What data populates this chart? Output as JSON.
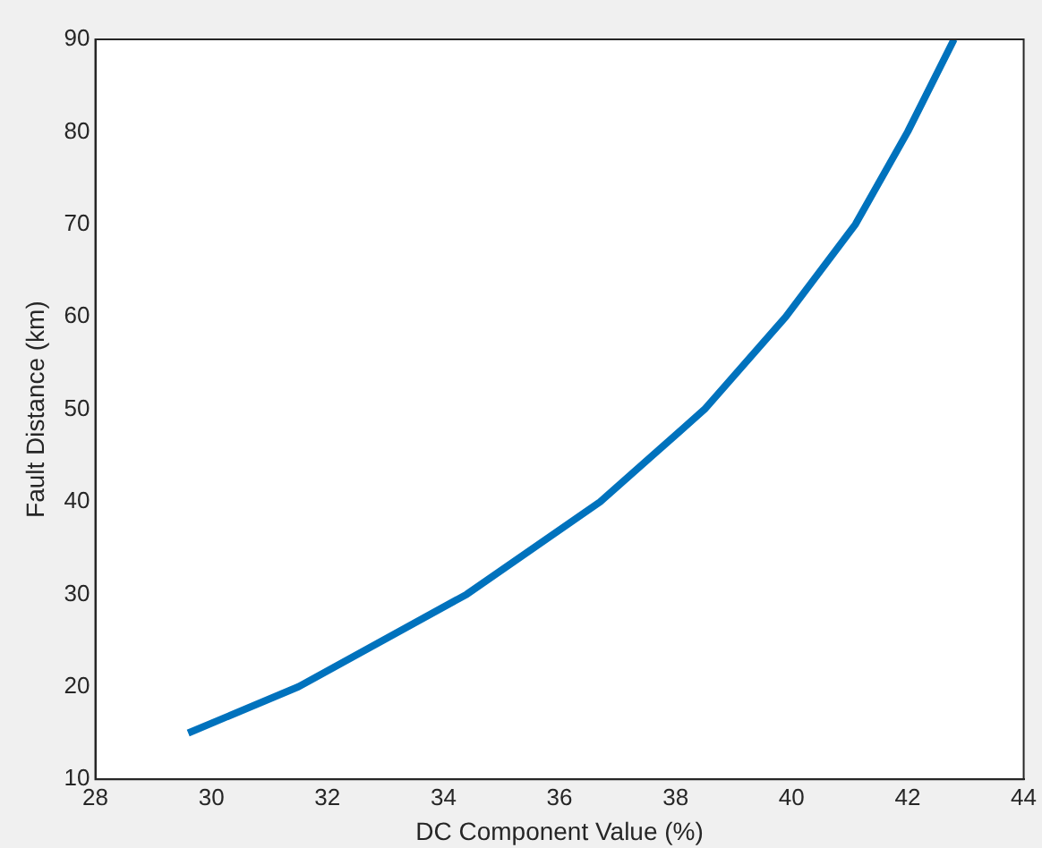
{
  "chart_data": {
    "type": "line",
    "xlabel": "DC Component Value (%)",
    "ylabel": "Fault Distance (km)",
    "x": [
      29.6,
      31.5,
      34.4,
      36.7,
      38.5,
      39.9,
      41.1,
      42.0,
      42.8
    ],
    "series": [
      {
        "color": "#0072bd",
        "values": [
          15,
          20,
          30,
          40,
          50,
          60,
          70,
          80,
          90
        ]
      }
    ],
    "xlim": [
      28,
      44
    ],
    "xticks": [
      28,
      30,
      32,
      34,
      36,
      38,
      40,
      42,
      44
    ],
    "ylim": [
      10,
      90
    ],
    "yticks": [
      10,
      20,
      30,
      40,
      50,
      60,
      70,
      80,
      90
    ],
    "grid": false,
    "legend": false,
    "marker": "none",
    "line_style": "solid"
  }
}
